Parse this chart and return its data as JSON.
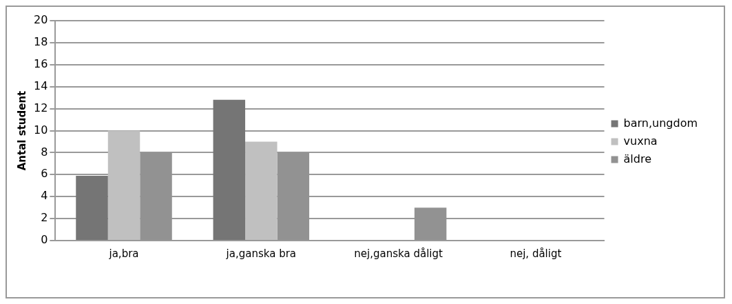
{
  "chart_data": {
    "type": "bar",
    "ylabel": "Antal student",
    "categories": [
      "ja,bra",
      "ja,ganska bra",
      "nej,ganska dåligt",
      "nej, dåligt"
    ],
    "series": [
      {
        "name": "barn,ungdom",
        "color": "#757575",
        "values": [
          5.9,
          12.8,
          0,
          0
        ]
      },
      {
        "name": "vuxna",
        "color": "#c0c0c0",
        "values": [
          10,
          9,
          0,
          0
        ]
      },
      {
        "name": "äldre",
        "color": "#929292",
        "values": [
          8,
          8,
          3,
          0
        ]
      }
    ],
    "ylim": [
      0,
      20
    ],
    "yticks": [
      0,
      2,
      4,
      6,
      8,
      10,
      12,
      14,
      16,
      18,
      20
    ],
    "grid": "y",
    "legend": "right"
  }
}
